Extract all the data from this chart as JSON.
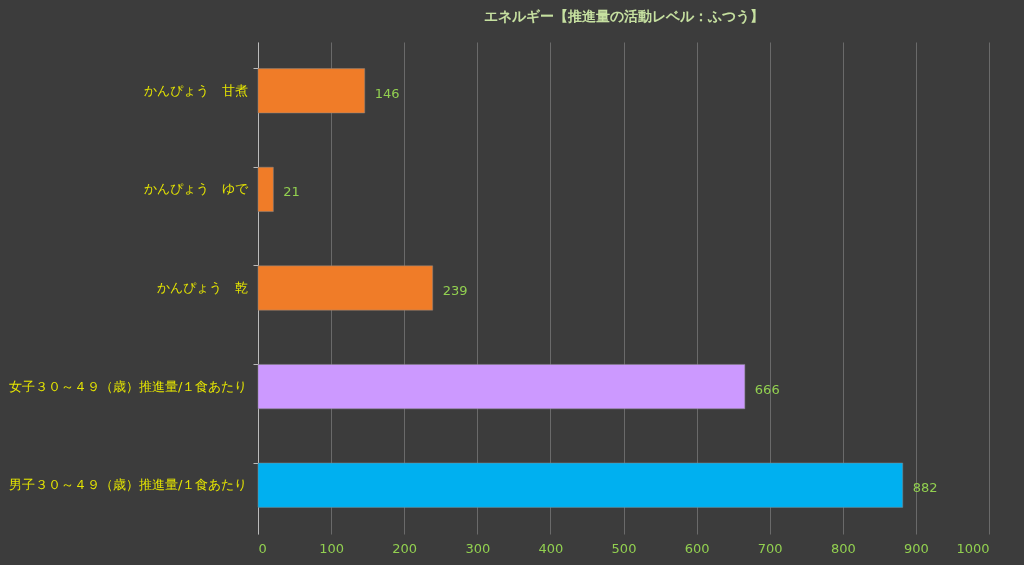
{
  "chart_data": {
    "type": "bar",
    "orientation": "horizontal",
    "title": "エネルギー【推進量の活動レベル：ふつう】",
    "categories": [
      "かんぴょう　甘煮",
      "かんぴょう　ゆで",
      "かんぴょう　乾",
      "女子３０～４９（歳）推進量/１食あたり",
      "男子３０～４９（歳）推進量/１食あたり"
    ],
    "values": [
      146,
      21,
      239,
      666,
      882
    ],
    "colors": [
      "#f07c28",
      "#f07c28",
      "#f07c28",
      "#cc99ff",
      "#00b0f0"
    ],
    "xlim": [
      0,
      1000
    ],
    "xticks": [
      0,
      100,
      200,
      300,
      400,
      500,
      600,
      700,
      800,
      900,
      1000
    ],
    "grid": "x",
    "data_labels": true
  }
}
